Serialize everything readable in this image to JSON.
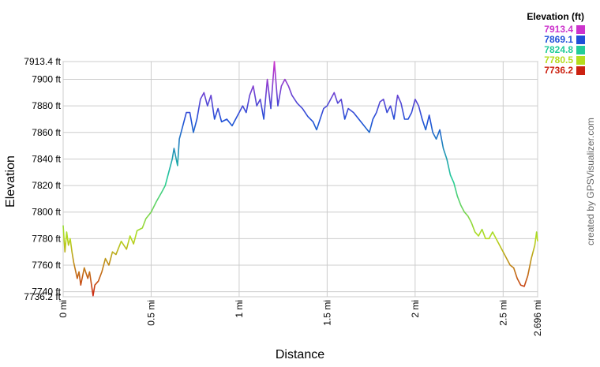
{
  "chart_data": {
    "type": "line",
    "x_label": "Distance",
    "y_label": "Elevation",
    "legend_title": "Elevation (ft)",
    "credit": "created by GPSVisualizer.com",
    "legend_position": "top-right",
    "grid": true,
    "color_scale": [
      {
        "value": 7913.4,
        "color": "#cc33cc"
      },
      {
        "value": 7869.1,
        "color": "#1f4fd8"
      },
      {
        "value": 7824.8,
        "color": "#22cc99"
      },
      {
        "value": 7780.5,
        "color": "#b5dc1e"
      },
      {
        "value": 7736.2,
        "color": "#cc2211"
      }
    ],
    "xlim": [
      0,
      2.696
    ],
    "ylim": [
      7736.2,
      7913.4
    ],
    "xticks": [
      {
        "value": 0,
        "label": "0 mi"
      },
      {
        "value": 0.5,
        "label": "0.5 mi"
      },
      {
        "value": 1,
        "label": "1 mi"
      },
      {
        "value": 1.5,
        "label": "1.5 mi"
      },
      {
        "value": 2,
        "label": "2 mi"
      },
      {
        "value": 2.5,
        "label": "2.5 mi"
      },
      {
        "value": 2.696,
        "label": "2.696 mi"
      }
    ],
    "yticks": [
      {
        "value": 7736.2,
        "label": "7736.2 ft"
      },
      {
        "value": 7740,
        "label": "7740 ft"
      },
      {
        "value": 7760,
        "label": "7760 ft"
      },
      {
        "value": 7780,
        "label": "7780 ft"
      },
      {
        "value": 7800,
        "label": "7800 ft"
      },
      {
        "value": 7820,
        "label": "7820 ft"
      },
      {
        "value": 7840,
        "label": "7840 ft"
      },
      {
        "value": 7860,
        "label": "7860 ft"
      },
      {
        "value": 7880,
        "label": "7880 ft"
      },
      {
        "value": 7900,
        "label": "7900 ft"
      },
      {
        "value": 7913.4,
        "label": "7913.4 ft"
      }
    ],
    "x": [
      0,
      0.01,
      0.02,
      0.03,
      0.04,
      0.05,
      0.06,
      0.08,
      0.09,
      0.1,
      0.12,
      0.14,
      0.15,
      0.17,
      0.18,
      0.2,
      0.22,
      0.24,
      0.26,
      0.28,
      0.3,
      0.33,
      0.36,
      0.38,
      0.4,
      0.42,
      0.45,
      0.47,
      0.5,
      0.53,
      0.56,
      0.58,
      0.6,
      0.62,
      0.63,
      0.65,
      0.66,
      0.68,
      0.7,
      0.72,
      0.74,
      0.76,
      0.78,
      0.8,
      0.82,
      0.84,
      0.86,
      0.88,
      0.9,
      0.93,
      0.96,
      0.98,
      1.0,
      1.02,
      1.04,
      1.06,
      1.08,
      1.1,
      1.12,
      1.14,
      1.16,
      1.18,
      1.2,
      1.22,
      1.24,
      1.26,
      1.28,
      1.3,
      1.33,
      1.36,
      1.39,
      1.42,
      1.44,
      1.46,
      1.48,
      1.5,
      1.52,
      1.54,
      1.56,
      1.58,
      1.6,
      1.62,
      1.65,
      1.68,
      1.71,
      1.74,
      1.76,
      1.78,
      1.8,
      1.82,
      1.84,
      1.86,
      1.88,
      1.9,
      1.92,
      1.94,
      1.96,
      1.98,
      2.0,
      2.02,
      2.04,
      2.06,
      2.08,
      2.1,
      2.12,
      2.14,
      2.16,
      2.18,
      2.2,
      2.22,
      2.24,
      2.26,
      2.28,
      2.3,
      2.32,
      2.34,
      2.36,
      2.38,
      2.4,
      2.42,
      2.44,
      2.46,
      2.48,
      2.5,
      2.52,
      2.54,
      2.56,
      2.58,
      2.6,
      2.62,
      2.64,
      2.66,
      2.68,
      2.69,
      2.696
    ],
    "values": [
      7790,
      7770,
      7785,
      7775,
      7780,
      7770,
      7762,
      7750,
      7755,
      7745,
      7758,
      7750,
      7755,
      7737,
      7745,
      7748,
      7755,
      7765,
      7760,
      7770,
      7768,
      7778,
      7772,
      7782,
      7776,
      7786,
      7788,
      7795,
      7800,
      7808,
      7815,
      7820,
      7830,
      7840,
      7848,
      7835,
      7855,
      7865,
      7875,
      7875,
      7860,
      7870,
      7885,
      7890,
      7880,
      7888,
      7870,
      7878,
      7868,
      7870,
      7865,
      7870,
      7875,
      7880,
      7875,
      7888,
      7895,
      7880,
      7885,
      7870,
      7900,
      7878,
      7913.4,
      7880,
      7895,
      7900,
      7895,
      7888,
      7882,
      7878,
      7872,
      7868,
      7862,
      7870,
      7878,
      7880,
      7885,
      7890,
      7882,
      7885,
      7870,
      7878,
      7875,
      7870,
      7865,
      7860,
      7870,
      7875,
      7883,
      7885,
      7875,
      7880,
      7870,
      7888,
      7882,
      7870,
      7870,
      7875,
      7885,
      7880,
      7870,
      7862,
      7873,
      7860,
      7855,
      7862,
      7848,
      7840,
      7828,
      7822,
      7812,
      7805,
      7800,
      7797,
      7792,
      7785,
      7782,
      7787,
      7780,
      7780,
      7785,
      7780,
      7775,
      7770,
      7765,
      7760,
      7758,
      7750,
      7745,
      7744,
      7752,
      7765,
      7775,
      7785,
      7778
    ]
  }
}
